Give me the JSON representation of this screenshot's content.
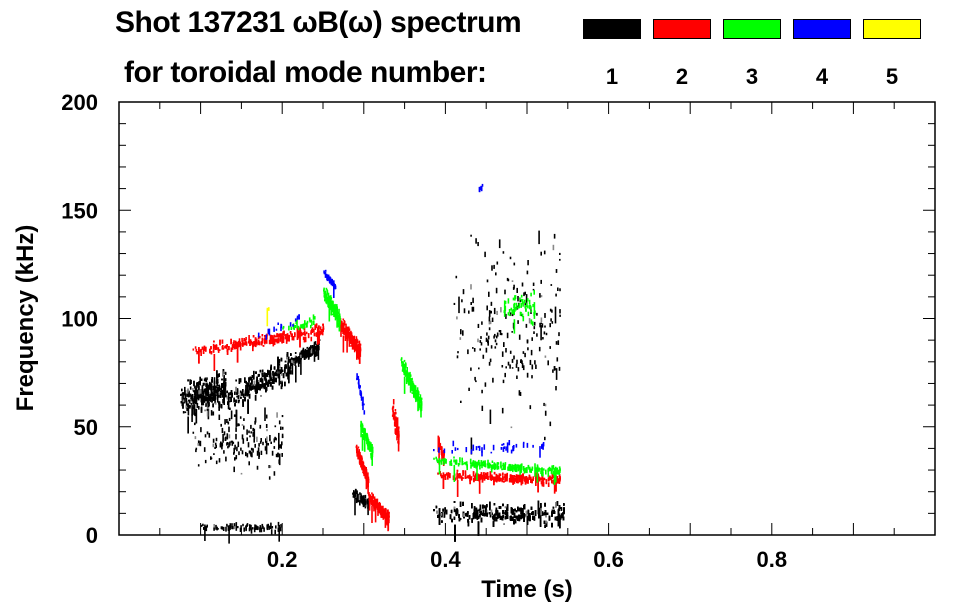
{
  "chart_data": {
    "type": "heatmap",
    "title_line1": "Shot 137231 ωB(ω) spectrum",
    "title_line2": "for toroidal mode number:",
    "xlabel": "Time (s)",
    "ylabel": "Frequency (kHz)",
    "xlim": [
      0,
      1.0
    ],
    "ylim": [
      0,
      200
    ],
    "xticks": [
      {
        "v": 0.2,
        "label": "0.2"
      },
      {
        "v": 0.4,
        "label": "0.4"
      },
      {
        "v": 0.6,
        "label": "0.6"
      },
      {
        "v": 0.8,
        "label": "0.8"
      }
    ],
    "yticks": [
      {
        "v": 0,
        "label": "0"
      },
      {
        "v": 50,
        "label": "50"
      },
      {
        "v": 100,
        "label": "100"
      },
      {
        "v": 150,
        "label": "150"
      },
      {
        "v": 200,
        "label": "200"
      }
    ],
    "legend": [
      {
        "mode": "1",
        "color": "#000000"
      },
      {
        "mode": "2",
        "color": "#ff0000"
      },
      {
        "mode": "3",
        "color": "#00ff00"
      },
      {
        "mode": "4",
        "color": "#0000ff"
      },
      {
        "mode": "5",
        "color": "#ffff00"
      }
    ],
    "series": [
      {
        "mode": "1",
        "color": "#000000",
        "regions": [
          {
            "t": [
              0.075,
              0.13
            ],
            "f": [
              62,
              68
            ],
            "spread": 22,
            "n": 500
          },
          {
            "t": [
              0.13,
              0.21
            ],
            "f": [
              62,
              78
            ],
            "spread": 18,
            "n": 600
          },
          {
            "t": [
              0.09,
              0.2
            ],
            "f": [
              42,
              42
            ],
            "spread": 40,
            "n": 160
          },
          {
            "t": [
              0.21,
              0.245
            ],
            "f": [
              80,
              88
            ],
            "spread": 8,
            "n": 150
          },
          {
            "t": [
              0.285,
              0.305
            ],
            "f": [
              20,
              15
            ],
            "spread": 6,
            "n": 90
          },
          {
            "t": [
              0.385,
              0.545
            ],
            "f": [
              10,
              10
            ],
            "spread": 14,
            "n": 1100
          },
          {
            "t": [
              0.1,
              0.2
            ],
            "f": [
              4,
              4
            ],
            "spread": 5,
            "n": 80
          },
          {
            "t": [
              0.41,
              0.54
            ],
            "f": [
              90,
              90
            ],
            "spread": 120,
            "n": 220
          }
        ]
      },
      {
        "mode": "2",
        "color": "#ff0000",
        "regions": [
          {
            "t": [
              0.09,
              0.25
            ],
            "f": [
              85,
              95
            ],
            "spread": 8,
            "n": 400
          },
          {
            "t": [
              0.27,
              0.295
            ],
            "f": [
              98,
              85
            ],
            "spread": 10,
            "n": 220
          },
          {
            "t": [
              0.29,
              0.305
            ],
            "f": [
              40,
              25
            ],
            "spread": 8,
            "n": 120
          },
          {
            "t": [
              0.305,
              0.33
            ],
            "f": [
              18,
              8
            ],
            "spread": 8,
            "n": 200
          },
          {
            "t": [
              0.334,
              0.342
            ],
            "f": [
              60,
              45
            ],
            "spread": 15,
            "n": 60
          },
          {
            "t": [
              0.39,
              0.54
            ],
            "f": [
              28,
              26
            ],
            "spread": 6,
            "n": 450
          },
          {
            "t": [
              0.39,
              0.398
            ],
            "f": [
              45,
              35
            ],
            "spread": 8,
            "n": 40
          }
        ]
      },
      {
        "mode": "3",
        "color": "#00ff00",
        "regions": [
          {
            "t": [
              0.25,
              0.27
            ],
            "f": [
              112,
              100
            ],
            "spread": 10,
            "n": 160
          },
          {
            "t": [
              0.295,
              0.31
            ],
            "f": [
              52,
              38
            ],
            "spread": 8,
            "n": 90
          },
          {
            "t": [
              0.345,
              0.37
            ],
            "f": [
              80,
              60
            ],
            "spread": 10,
            "n": 180
          },
          {
            "t": [
              0.385,
              0.54
            ],
            "f": [
              35,
              30
            ],
            "spread": 5,
            "n": 200
          },
          {
            "t": [
              0.47,
              0.51
            ],
            "f": [
              105,
              105
            ],
            "spread": 20,
            "n": 60
          },
          {
            "t": [
              0.2,
              0.24
            ],
            "f": [
              95,
              100
            ],
            "spread": 6,
            "n": 30
          }
        ]
      },
      {
        "mode": "4",
        "color": "#0000ff",
        "regions": [
          {
            "t": [
              0.25,
              0.265
            ],
            "f": [
              122,
              115
            ],
            "spread": 4,
            "n": 40
          },
          {
            "t": [
              0.29,
              0.3
            ],
            "f": [
              75,
              58
            ],
            "spread": 6,
            "n": 20
          },
          {
            "t": [
              0.38,
              0.52
            ],
            "f": [
              40,
              42
            ],
            "spread": 8,
            "n": 40
          },
          {
            "t": [
              0.165,
              0.22
            ],
            "f": [
              92,
              100
            ],
            "spread": 6,
            "n": 20
          },
          {
            "t": [
              0.44,
              0.445
            ],
            "f": [
              160,
              162
            ],
            "spread": 3,
            "n": 5
          }
        ]
      },
      {
        "mode": "5",
        "color": "#ffff00",
        "regions": [
          {
            "t": [
              0.18,
              0.185
            ],
            "f": [
              105,
              105
            ],
            "spread": 2,
            "n": 3
          }
        ]
      }
    ]
  }
}
